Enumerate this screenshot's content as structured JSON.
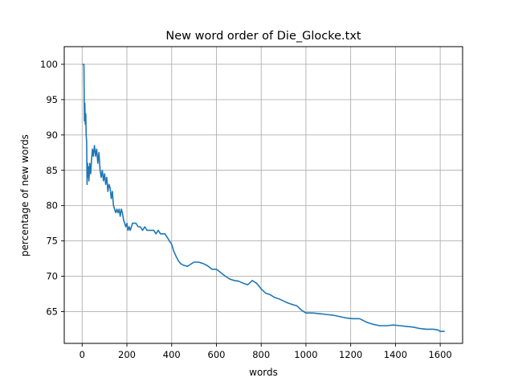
{
  "chart_data": {
    "type": "line",
    "title": "New word order of Die_Glocke.txt",
    "xlabel": "words",
    "ylabel": "percentage of new words",
    "xlim": [
      -80,
      1700
    ],
    "ylim": [
      60.5,
      102.5
    ],
    "xticks": [
      0,
      200,
      400,
      600,
      800,
      1000,
      1200,
      1400,
      1600
    ],
    "yticks": [
      65,
      70,
      75,
      80,
      85,
      90,
      95,
      100
    ],
    "grid": true,
    "legend": "none",
    "series": [
      {
        "color": "#1f77b4",
        "x": [
          1,
          5,
          8,
          10,
          12,
          14,
          16,
          18,
          20,
          22,
          24,
          26,
          28,
          30,
          34,
          38,
          42,
          46,
          50,
          55,
          60,
          65,
          70,
          75,
          80,
          85,
          90,
          95,
          100,
          105,
          110,
          115,
          120,
          125,
          130,
          135,
          140,
          145,
          150,
          155,
          160,
          165,
          170,
          175,
          180,
          185,
          190,
          195,
          200,
          205,
          210,
          215,
          220,
          225,
          230,
          240,
          250,
          260,
          270,
          280,
          290,
          300,
          310,
          320,
          330,
          340,
          350,
          360,
          370,
          380,
          390,
          400,
          410,
          420,
          430,
          440,
          450,
          460,
          470,
          480,
          490,
          500,
          520,
          540,
          560,
          580,
          600,
          620,
          640,
          660,
          680,
          700,
          720,
          740,
          760,
          780,
          800,
          820,
          840,
          860,
          880,
          900,
          920,
          940,
          960,
          980,
          1000,
          1030,
          1060,
          1090,
          1120,
          1150,
          1180,
          1210,
          1240,
          1270,
          1300,
          1330,
          1360,
          1390,
          1420,
          1450,
          1480,
          1510,
          1540,
          1570,
          1590,
          1600,
          1620
        ],
        "y": [
          100,
          100,
          100,
          92,
          94.5,
          91.5,
          93,
          90,
          89,
          83,
          86,
          84,
          85.5,
          83.5,
          86,
          84.5,
          86.5,
          88,
          87,
          88.5,
          87,
          88,
          86,
          87.5,
          85,
          84,
          85,
          83.5,
          84.5,
          83,
          84,
          82,
          83,
          82.5,
          81,
          82,
          80,
          79.5,
          79,
          79.5,
          79,
          79.5,
          78.5,
          79.5,
          79,
          78,
          77.5,
          77,
          77.5,
          76.5,
          77,
          76.5,
          77,
          77.5,
          77.5,
          77.5,
          77,
          77,
          76.5,
          77,
          76.5,
          76.5,
          76.5,
          76.5,
          76,
          76.5,
          76,
          76,
          76,
          75.5,
          75,
          74.5,
          73.5,
          72.8,
          72.2,
          71.8,
          71.6,
          71.5,
          71.4,
          71.6,
          71.8,
          72,
          72,
          71.8,
          71.5,
          71,
          71,
          70.5,
          70,
          69.6,
          69.4,
          69.3,
          69,
          68.8,
          69.4,
          69,
          68.2,
          67.6,
          67.4,
          67,
          66.8,
          66.5,
          66.2,
          66,
          65.8,
          65.2,
          64.8,
          64.8,
          64.7,
          64.6,
          64.5,
          64.3,
          64.1,
          64,
          64,
          63.5,
          63.2,
          63,
          63,
          63.1,
          63,
          62.9,
          62.8,
          62.6,
          62.5,
          62.5,
          62.4,
          62.2,
          62.2
        ]
      }
    ]
  }
}
